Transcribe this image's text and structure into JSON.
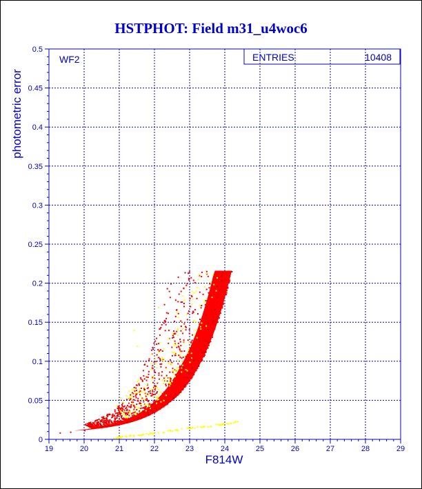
{
  "colors": {
    "axis": "#0000cc",
    "grid": "#0000cc",
    "title": "#0000cc",
    "primary_points": "#ff0000",
    "secondary_points": "#ffff00",
    "mixed_points": "#cc0000"
  },
  "chart_data": {
    "type": "scatter",
    "title": "HSTPHOT: Field m31_u4woc6",
    "xlabel": "F814W",
    "ylabel": "photometric error",
    "xlim": [
      19,
      29
    ],
    "ylim": [
      0,
      0.5
    ],
    "xticks": [
      "19",
      "20",
      "21",
      "22",
      "23",
      "24",
      "25",
      "26",
      "27",
      "28",
      "29"
    ],
    "yticks": [
      "0",
      "0.05",
      "0.1",
      "0.15",
      "0.2",
      "0.25",
      "0.3",
      "0.35",
      "0.4",
      "0.45",
      "0.5"
    ],
    "grid": true,
    "annotation": "WF2",
    "stats_box": {
      "label": "ENTRIES",
      "value": "10408"
    },
    "series": [
      {
        "color": "#ff0000",
        "description_points": [
          [
            19.3,
            0.009
          ],
          [
            19.6,
            0.01
          ],
          [
            20.0,
            0.012
          ],
          [
            20.3,
            0.014
          ],
          [
            20.6,
            0.016
          ],
          [
            21.0,
            0.02
          ],
          [
            21.4,
            0.025
          ],
          [
            21.8,
            0.031
          ],
          [
            22.2,
            0.039
          ],
          [
            22.6,
            0.05
          ],
          [
            23.0,
            0.064
          ],
          [
            23.3,
            0.08
          ],
          [
            23.6,
            0.1
          ],
          [
            23.8,
            0.12
          ],
          [
            24.0,
            0.145
          ],
          [
            24.1,
            0.165
          ],
          [
            24.2,
            0.19
          ],
          [
            24.3,
            0.215
          ]
        ]
      },
      {
        "color": "#ffff00",
        "description_points": [
          [
            21.0,
            0.002
          ],
          [
            21.5,
            0.004
          ],
          [
            22.0,
            0.006
          ],
          [
            22.5,
            0.008
          ],
          [
            23.0,
            0.011
          ],
          [
            23.5,
            0.015
          ],
          [
            24.0,
            0.02
          ],
          [
            24.4,
            0.024
          ],
          [
            21.4,
            0.14
          ],
          [
            21.5,
            0.12
          ],
          [
            21.9,
            0.065
          ],
          [
            22.3,
            0.08
          ],
          [
            22.6,
            0.11
          ],
          [
            22.1,
            0.17
          ],
          [
            23.0,
            0.12
          ],
          [
            22.8,
            0.15
          ]
        ]
      }
    ]
  }
}
